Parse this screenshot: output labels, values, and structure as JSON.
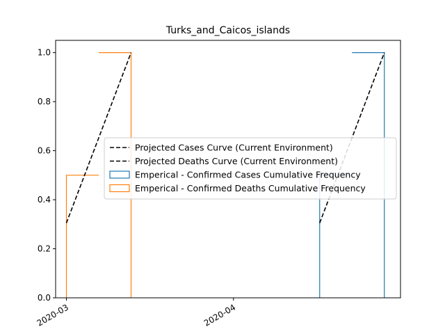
{
  "chart_data": {
    "type": "line",
    "title": "Turks_and_Caicos_islands",
    "xlabel": "",
    "ylabel": "",
    "ylim": [
      0,
      1.05
    ],
    "xlim": [
      "2020-02-28",
      "2020-05-02"
    ],
    "x_ticks": [
      {
        "date": "2020-03-01",
        "label": "2020-03"
      },
      {
        "date": "2020-04-01",
        "label": "2020-04"
      }
    ],
    "y_ticks": [
      {
        "value": 0.0,
        "label": "0.0"
      },
      {
        "value": 0.2,
        "label": "0.2"
      },
      {
        "value": 0.4,
        "label": "0.4"
      },
      {
        "value": 0.6,
        "label": "0.6"
      },
      {
        "value": 0.8,
        "label": "0.8"
      },
      {
        "value": 1.0,
        "label": "1.0"
      }
    ],
    "legend_position": "center-right",
    "grid": false,
    "series": [
      {
        "name": "Projected Cases Curve (Current Environment)",
        "kind": "dashed-line",
        "color": "#000000",
        "points": [
          {
            "x": "2020-04-17",
            "y": 0.305
          },
          {
            "x": "2020-04-29",
            "y": 1.0
          }
        ]
      },
      {
        "name": "Projected Deaths Curve (Current Environment)",
        "kind": "dashed-line",
        "color": "#000000",
        "points": [
          {
            "x": "2020-03-01",
            "y": 0.305
          },
          {
            "x": "2020-03-13",
            "y": 1.0
          }
        ]
      },
      {
        "name": "Emperical - Confirmed Cases Cumulative Frequency",
        "kind": "step-histogram",
        "color": "#1f77b4",
        "bins": [
          {
            "x0": "2020-04-17",
            "x1": "2020-04-23",
            "y": 0.5
          },
          {
            "x0": "2020-04-23",
            "x1": "2020-04-29",
            "y": 1.0
          }
        ]
      },
      {
        "name": "Emperical - Confirmed Deaths Cumulative Frequency",
        "kind": "step-histogram",
        "color": "#ff7f0e",
        "bins": [
          {
            "x0": "2020-03-01",
            "x1": "2020-03-07",
            "y": 0.5
          },
          {
            "x0": "2020-03-07",
            "x1": "2020-03-13",
            "y": 1.0
          }
        ]
      }
    ]
  }
}
